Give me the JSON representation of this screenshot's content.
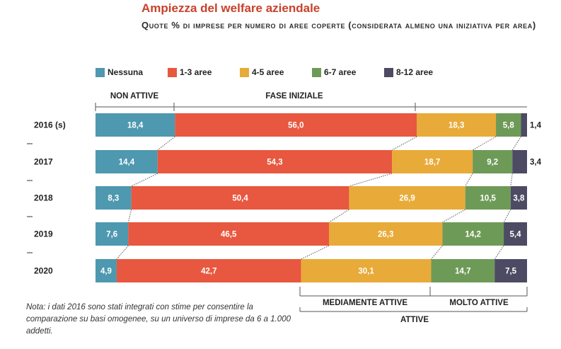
{
  "header": {
    "title": "Ampiezza del welfare aziendale",
    "subtitle": "Quote % di imprese per numero di aree coperte (considerata almeno una iniziativa per area)"
  },
  "groups": {
    "non_attive": "NON ATTIVE",
    "fase_iniziale": "FASE INIZIALE",
    "mediamente_attive": "MEDIAMENTE ATTIVE",
    "molto_attive": "MOLTO ATTIVE",
    "attive": "ATTIVE"
  },
  "note": "Nota: i dati 2016 sono stati integrati con stime per consentire la comparazione su basi omogenee, su un universo di imprese da 6 a 1.000 addetti.",
  "chart_data": {
    "type": "bar",
    "orientation": "horizontal-stacked-100",
    "title": "Ampiezza del welfare aziendale",
    "subtitle": "Quote % di imprese per numero di aree coperte (considerata almeno una iniziativa per area)",
    "categories": [
      "2016 (s)",
      "2017",
      "2018",
      "2019",
      "2020"
    ],
    "series": [
      {
        "name": "Nessuna",
        "color": "#4e98b0",
        "values": [
          18.4,
          14.4,
          8.3,
          7.6,
          4.9
        ],
        "labels": [
          "18,4",
          "14,4",
          "8,3",
          "7,6",
          "4,9"
        ]
      },
      {
        "name": "1-3 aree",
        "color": "#e8573f",
        "values": [
          56.0,
          54.3,
          50.4,
          46.5,
          42.7
        ],
        "labels": [
          "56,0",
          "54,3",
          "50,4",
          "46,5",
          "42,7"
        ]
      },
      {
        "name": "4-5 aree",
        "color": "#e8aa38",
        "values": [
          18.3,
          18.7,
          26.9,
          26.3,
          30.1
        ],
        "labels": [
          "18,3",
          "18,7",
          "26,9",
          "26,3",
          "30,1"
        ]
      },
      {
        "name": "6-7 aree",
        "color": "#6e9a57",
        "values": [
          5.8,
          9.2,
          10.5,
          14.2,
          14.7
        ],
        "labels": [
          "5,8",
          "9,2",
          "10,5",
          "14,2",
          "14,7"
        ]
      },
      {
        "name": "8-12 aree",
        "color": "#4d4a63",
        "values": [
          1.4,
          3.4,
          3.8,
          5.4,
          7.5
        ],
        "labels": [
          "1,4",
          "3,4",
          "3,8",
          "5,4",
          "7,5"
        ]
      }
    ],
    "xlim": [
      0,
      100
    ],
    "legend_position": "top",
    "grid": false
  }
}
